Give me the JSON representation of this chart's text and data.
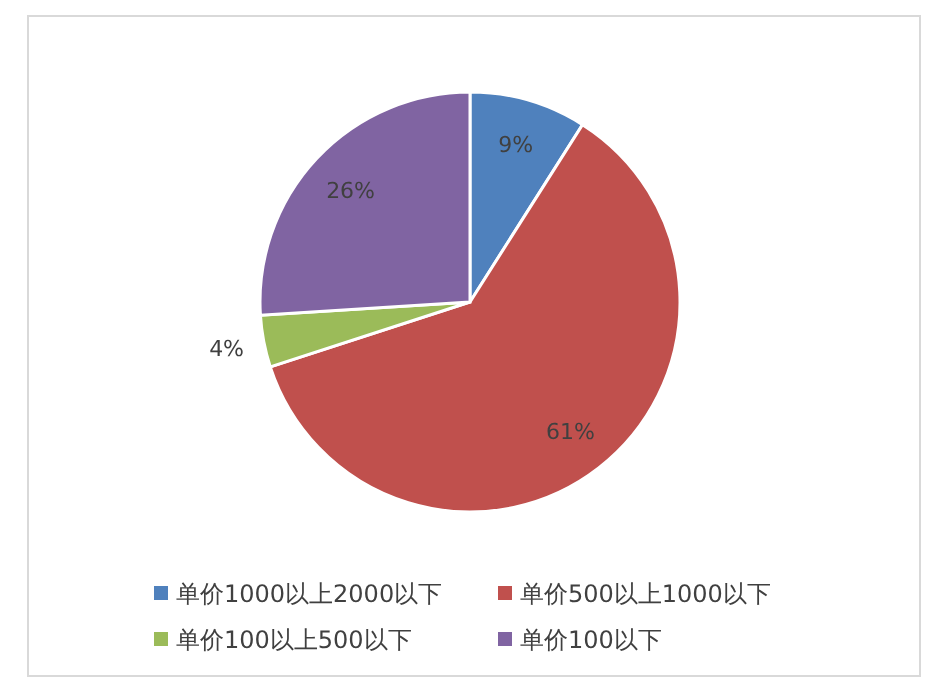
{
  "chart_data": {
    "type": "pie",
    "categories": [
      "单价1000以上2000以下",
      "单价500以上1000以下",
      "单价100以上500以下",
      "单价100以下"
    ],
    "values": [
      9,
      61,
      4,
      26
    ],
    "value_labels": [
      "9%",
      "61%",
      "4%",
      "26%"
    ],
    "colors": [
      "#4f81bd",
      "#c0504d",
      "#9bbb59",
      "#8064a2"
    ],
    "legend": "bottom"
  }
}
